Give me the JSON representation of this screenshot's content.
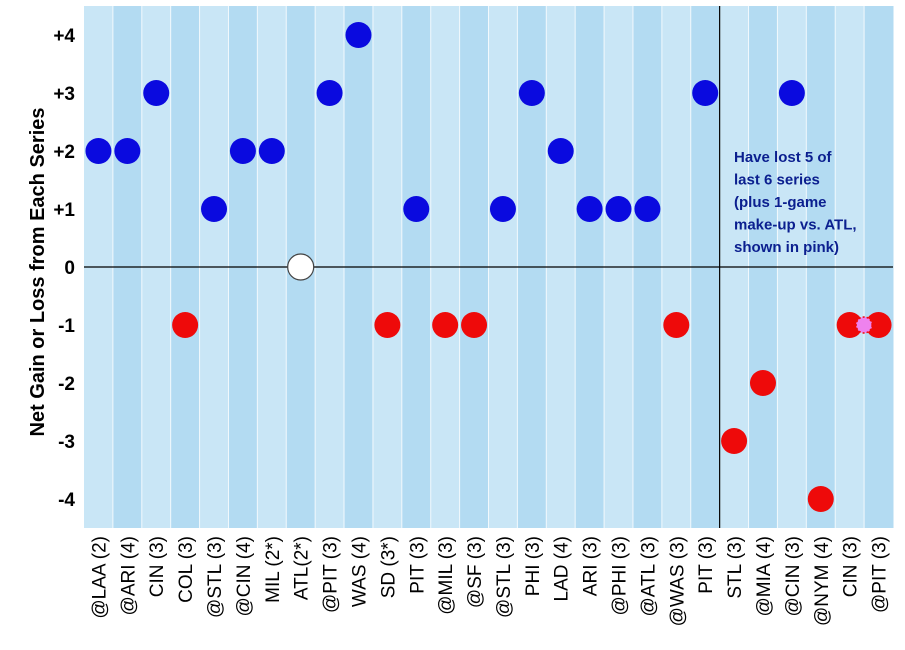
{
  "chart_data": {
    "type": "scatter",
    "title": "",
    "xlabel": "",
    "ylabel": "Net Gain or Loss from Each Series",
    "ylim": [
      -4.5,
      4.5
    ],
    "yticks": [
      4,
      3,
      2,
      1,
      0,
      -1,
      -2,
      -3,
      -4
    ],
    "ytick_labels": [
      "+4",
      "+3",
      "+2",
      "+1",
      "0",
      "-1",
      "-2",
      "-3",
      "-4"
    ],
    "categories": [
      "@LAA (2)",
      "@ARI (4)",
      "CIN (3)",
      "COL (3)",
      "@STL (3)",
      "@CIN (4)",
      "MIL (2*)",
      "ATL(2*)",
      "@PIT (3)",
      "WAS (4)",
      "SD  (3*)",
      "PIT (3)",
      "@MIL (3)",
      "@SF (3)",
      "@STL (3)",
      "PHI (3)",
      "LAD (4)",
      "ARI (3)",
      "@PHI (3)",
      "@ATL (3)",
      "@WAS (3)",
      "PIT (3)",
      "STL (3)",
      "@MIA (4)",
      "@CIN (3)",
      "@NYM (4)",
      "CIN (3)",
      "@PIT (3)"
    ],
    "values": [
      2,
      2,
      3,
      -1,
      1,
      2,
      2,
      0,
      3,
      4,
      -1,
      1,
      -1,
      -1,
      1,
      3,
      2,
      1,
      1,
      1,
      -1,
      3,
      -3,
      -2,
      3,
      -4,
      -1,
      -1
    ],
    "extra_points": [
      {
        "x_between": [
          26,
          27
        ],
        "value": -1,
        "color": "#ee82ee",
        "label": "1-game make-up vs. ATL"
      }
    ],
    "colors": {
      "positive": "#0a0adf",
      "negative": "#ee0a0a",
      "zero": "#ffffff",
      "makeup": "#ee82ee",
      "band_a": "#c9e6f6",
      "band_b": "#b3dbf2"
    },
    "divider_after_index": 21,
    "annotation": [
      "Have lost 5 of",
      "last 6 series",
      "(plus 1-game",
      "make-up vs. ATL,",
      "shown in pink)"
    ]
  }
}
